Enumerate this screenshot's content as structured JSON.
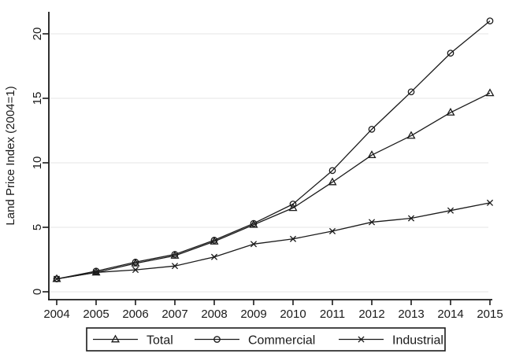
{
  "figure": {
    "background": "#ffffff",
    "line_color": "#1a1a1a",
    "axis_color": "#1a1a1a",
    "grid_color": "#ebebeb"
  },
  "chart_data": {
    "type": "line",
    "ylabel": "Land Price Index (2004=1)",
    "xlabel": "",
    "x": [
      2004,
      2005,
      2006,
      2007,
      2008,
      2009,
      2010,
      2011,
      2012,
      2013,
      2014,
      2015
    ],
    "yticks": [
      0,
      5,
      10,
      15,
      20
    ],
    "ylim": [
      0,
      21.8
    ],
    "grid": "horizontal",
    "legend_position": "bottom",
    "series": [
      {
        "name": "Total",
        "marker": "triangle",
        "values": [
          1.0,
          1.5,
          2.2,
          2.8,
          3.9,
          5.2,
          6.5,
          8.5,
          10.6,
          12.1,
          13.9,
          15.4
        ]
      },
      {
        "name": "Commercial",
        "marker": "circle",
        "values": [
          1.0,
          1.6,
          2.3,
          2.9,
          4.0,
          5.3,
          6.8,
          9.4,
          12.6,
          15.5,
          18.5,
          21.0
        ]
      },
      {
        "name": "Industrial",
        "marker": "x",
        "values": [
          1.0,
          1.5,
          1.7,
          2.0,
          2.7,
          3.7,
          4.1,
          4.7,
          5.4,
          5.7,
          6.3,
          6.9
        ]
      }
    ]
  }
}
